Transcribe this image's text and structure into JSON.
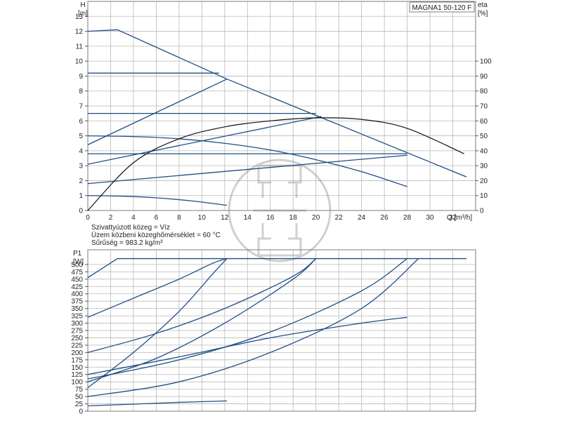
{
  "chart_data": [
    {
      "type": "line",
      "title": "MAGNA1 50-120 F",
      "ylabel": "H",
      "ylabel_unit": "[m]",
      "y2label": "eta",
      "y2label_unit": "[%]",
      "xlabel": "Q [m³/h]",
      "xlim": [
        0,
        34
      ],
      "ylim": [
        0,
        14
      ],
      "y2lim": [
        0,
        140
      ],
      "x_ticks": [
        0,
        2,
        4,
        6,
        8,
        10,
        12,
        14,
        16,
        18,
        20,
        22,
        24,
        26,
        28,
        30,
        32
      ],
      "y_ticks": [
        0,
        1,
        2,
        3,
        4,
        5,
        6,
        7,
        8,
        9,
        10,
        11,
        12,
        13
      ],
      "y2_ticks": [
        0,
        10,
        20,
        30,
        40,
        50,
        60,
        70,
        80,
        90,
        100
      ],
      "grid": true,
      "notes": [
        "Szivattyúzott közeg = Víz",
        "Üzem közbeni közeghőmérséklet = 60 °C",
        "Sűrűség = 983.2 kg/m³"
      ],
      "series": [
        {
          "name": "max curve",
          "color": "#1f4e85",
          "x": [
            0,
            2.6,
            12.2,
            33.2
          ],
          "y": [
            12.0,
            12.1,
            8.8,
            2.25
          ]
        },
        {
          "name": "constant pressure 9.2 m",
          "color": "#1f4e85",
          "x": [
            0,
            11.5
          ],
          "y": [
            9.2,
            9.2
          ]
        },
        {
          "name": "constant pressure 6.5 m",
          "color": "#1f4e85",
          "x": [
            0,
            20
          ],
          "y": [
            6.5,
            6.5
          ]
        },
        {
          "name": "constant pressure 3.8 m",
          "color": "#1f4e85",
          "x": [
            0,
            28
          ],
          "y": [
            3.8,
            3.8
          ]
        },
        {
          "name": "proportional pressure high",
          "color": "#1f4e85",
          "x": [
            0,
            12.2
          ],
          "y": [
            4.4,
            8.8
          ]
        },
        {
          "name": "proportional pressure medium",
          "color": "#1f4e85",
          "x": [
            0,
            20.5
          ],
          "y": [
            3.1,
            6.3
          ]
        },
        {
          "name": "proportional pressure low",
          "color": "#1f4e85",
          "x": [
            0,
            28
          ],
          "y": [
            1.8,
            3.7
          ]
        },
        {
          "name": "min curve 1",
          "color": "#1f4e85",
          "x": [
            0,
            3,
            6,
            9,
            12.2
          ],
          "y": [
            1.0,
            0.96,
            0.85,
            0.65,
            0.35
          ]
        },
        {
          "name": "min curve 2",
          "color": "#1f4e85",
          "x": [
            0,
            4,
            8,
            12,
            16,
            20,
            24,
            28
          ],
          "y": [
            5.0,
            4.95,
            4.8,
            4.5,
            4.05,
            3.4,
            2.6,
            1.6
          ]
        },
        {
          "name": "efficiency curves (eta, %)",
          "color": "#111111",
          "x": [
            0,
            4,
            8,
            12,
            16,
            20,
            24,
            28,
            33
          ],
          "y": [
            0,
            32,
            48,
            56,
            60,
            62,
            61,
            55,
            38
          ]
        }
      ]
    },
    {
      "type": "line",
      "ylabel": "P1",
      "ylabel_unit": "[W]",
      "xlim": [
        0,
        34
      ],
      "ylim": [
        0,
        550
      ],
      "y_ticks": [
        0,
        25,
        50,
        75,
        100,
        125,
        150,
        175,
        200,
        225,
        250,
        275,
        300,
        325,
        350,
        375,
        400,
        425,
        450,
        475,
        500
      ],
      "grid": true,
      "series": [
        {
          "name": "max power",
          "color": "#1f4e85",
          "x": [
            0,
            2.6,
            33.2
          ],
          "y": [
            455,
            520,
            520
          ]
        },
        {
          "name": "P 320 W",
          "color": "#1f4e85",
          "x": [
            0,
            4,
            8,
            11,
            12.2
          ],
          "y": [
            320,
            385,
            450,
            505,
            520
          ]
        },
        {
          "name": "P 200 W",
          "color": "#1f4e85",
          "x": [
            0,
            6,
            12,
            18,
            20
          ],
          "y": [
            200,
            265,
            350,
            460,
            520
          ]
        },
        {
          "name": "P 110 W",
          "color": "#1f4e85",
          "x": [
            0,
            8,
            16,
            24,
            28
          ],
          "y": [
            110,
            175,
            270,
            410,
            520
          ]
        },
        {
          "name": "curve ending 12.2",
          "color": "#1f4e85",
          "x": [
            0,
            4,
            8,
            11,
            12.2
          ],
          "y": [
            80,
            200,
            340,
            470,
            520
          ]
        },
        {
          "name": "curve ending 20",
          "color": "#1f4e85",
          "x": [
            0,
            6,
            12,
            18,
            20
          ],
          "y": [
            100,
            180,
            300,
            450,
            520
          ]
        },
        {
          "name": "curve ending 28",
          "color": "#1f4e85",
          "x": [
            0,
            8,
            16,
            24,
            29
          ],
          "y": [
            50,
            100,
            200,
            350,
            520
          ]
        },
        {
          "name": "curve to 320",
          "color": "#1f4e85",
          "x": [
            0,
            8,
            16,
            24,
            28
          ],
          "y": [
            125,
            185,
            250,
            300,
            320
          ]
        },
        {
          "name": "min power",
          "color": "#1f4e85",
          "x": [
            0,
            4,
            8,
            12.2
          ],
          "y": [
            18,
            24,
            30,
            35
          ]
        }
      ]
    }
  ]
}
